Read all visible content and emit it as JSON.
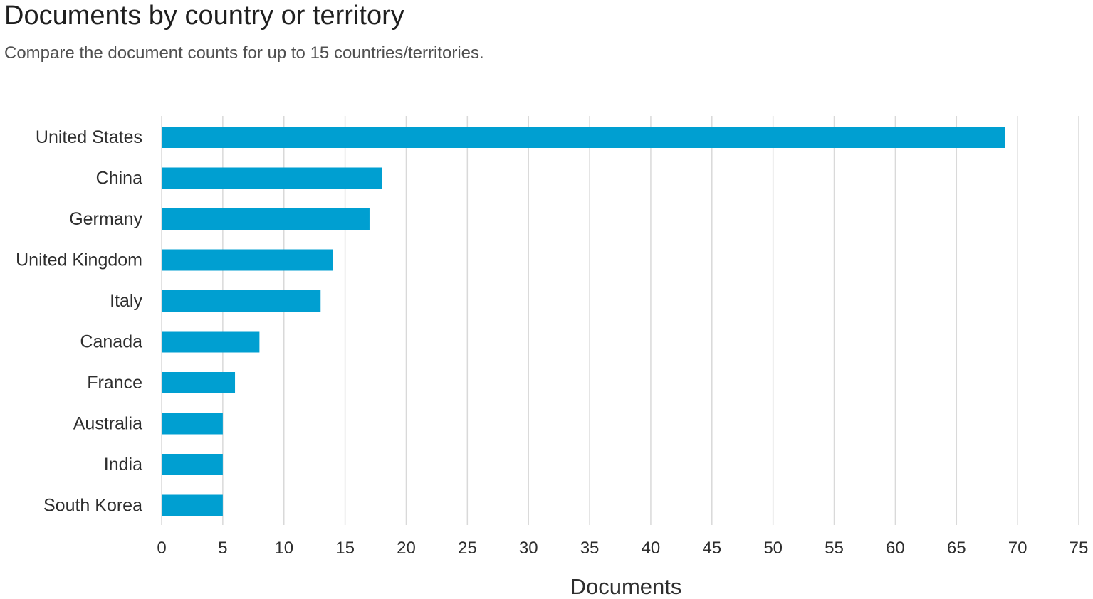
{
  "header": {
    "title": "Documents by country or territory",
    "subtitle": "Compare the document counts for up to 15 countries/territories."
  },
  "chart_data": {
    "type": "bar",
    "orientation": "horizontal",
    "title": "Documents by country or territory",
    "subtitle": "Compare the document counts for up to 15 countries/territories.",
    "xlabel": "Documents",
    "ylabel": "",
    "categories": [
      "United States",
      "China",
      "Germany",
      "United Kingdom",
      "Italy",
      "Canada",
      "France",
      "Australia",
      "India",
      "South Korea"
    ],
    "values": [
      69,
      18,
      17,
      14,
      13,
      8,
      6,
      5,
      5,
      5
    ],
    "xlim": [
      0,
      75
    ],
    "xticks": [
      0,
      5,
      10,
      15,
      20,
      25,
      30,
      35,
      40,
      45,
      50,
      55,
      60,
      65,
      70,
      75
    ],
    "grid": "vertical",
    "legend": "none",
    "bar_color": "#009fd1",
    "grid_color": "#d9d9d9"
  }
}
